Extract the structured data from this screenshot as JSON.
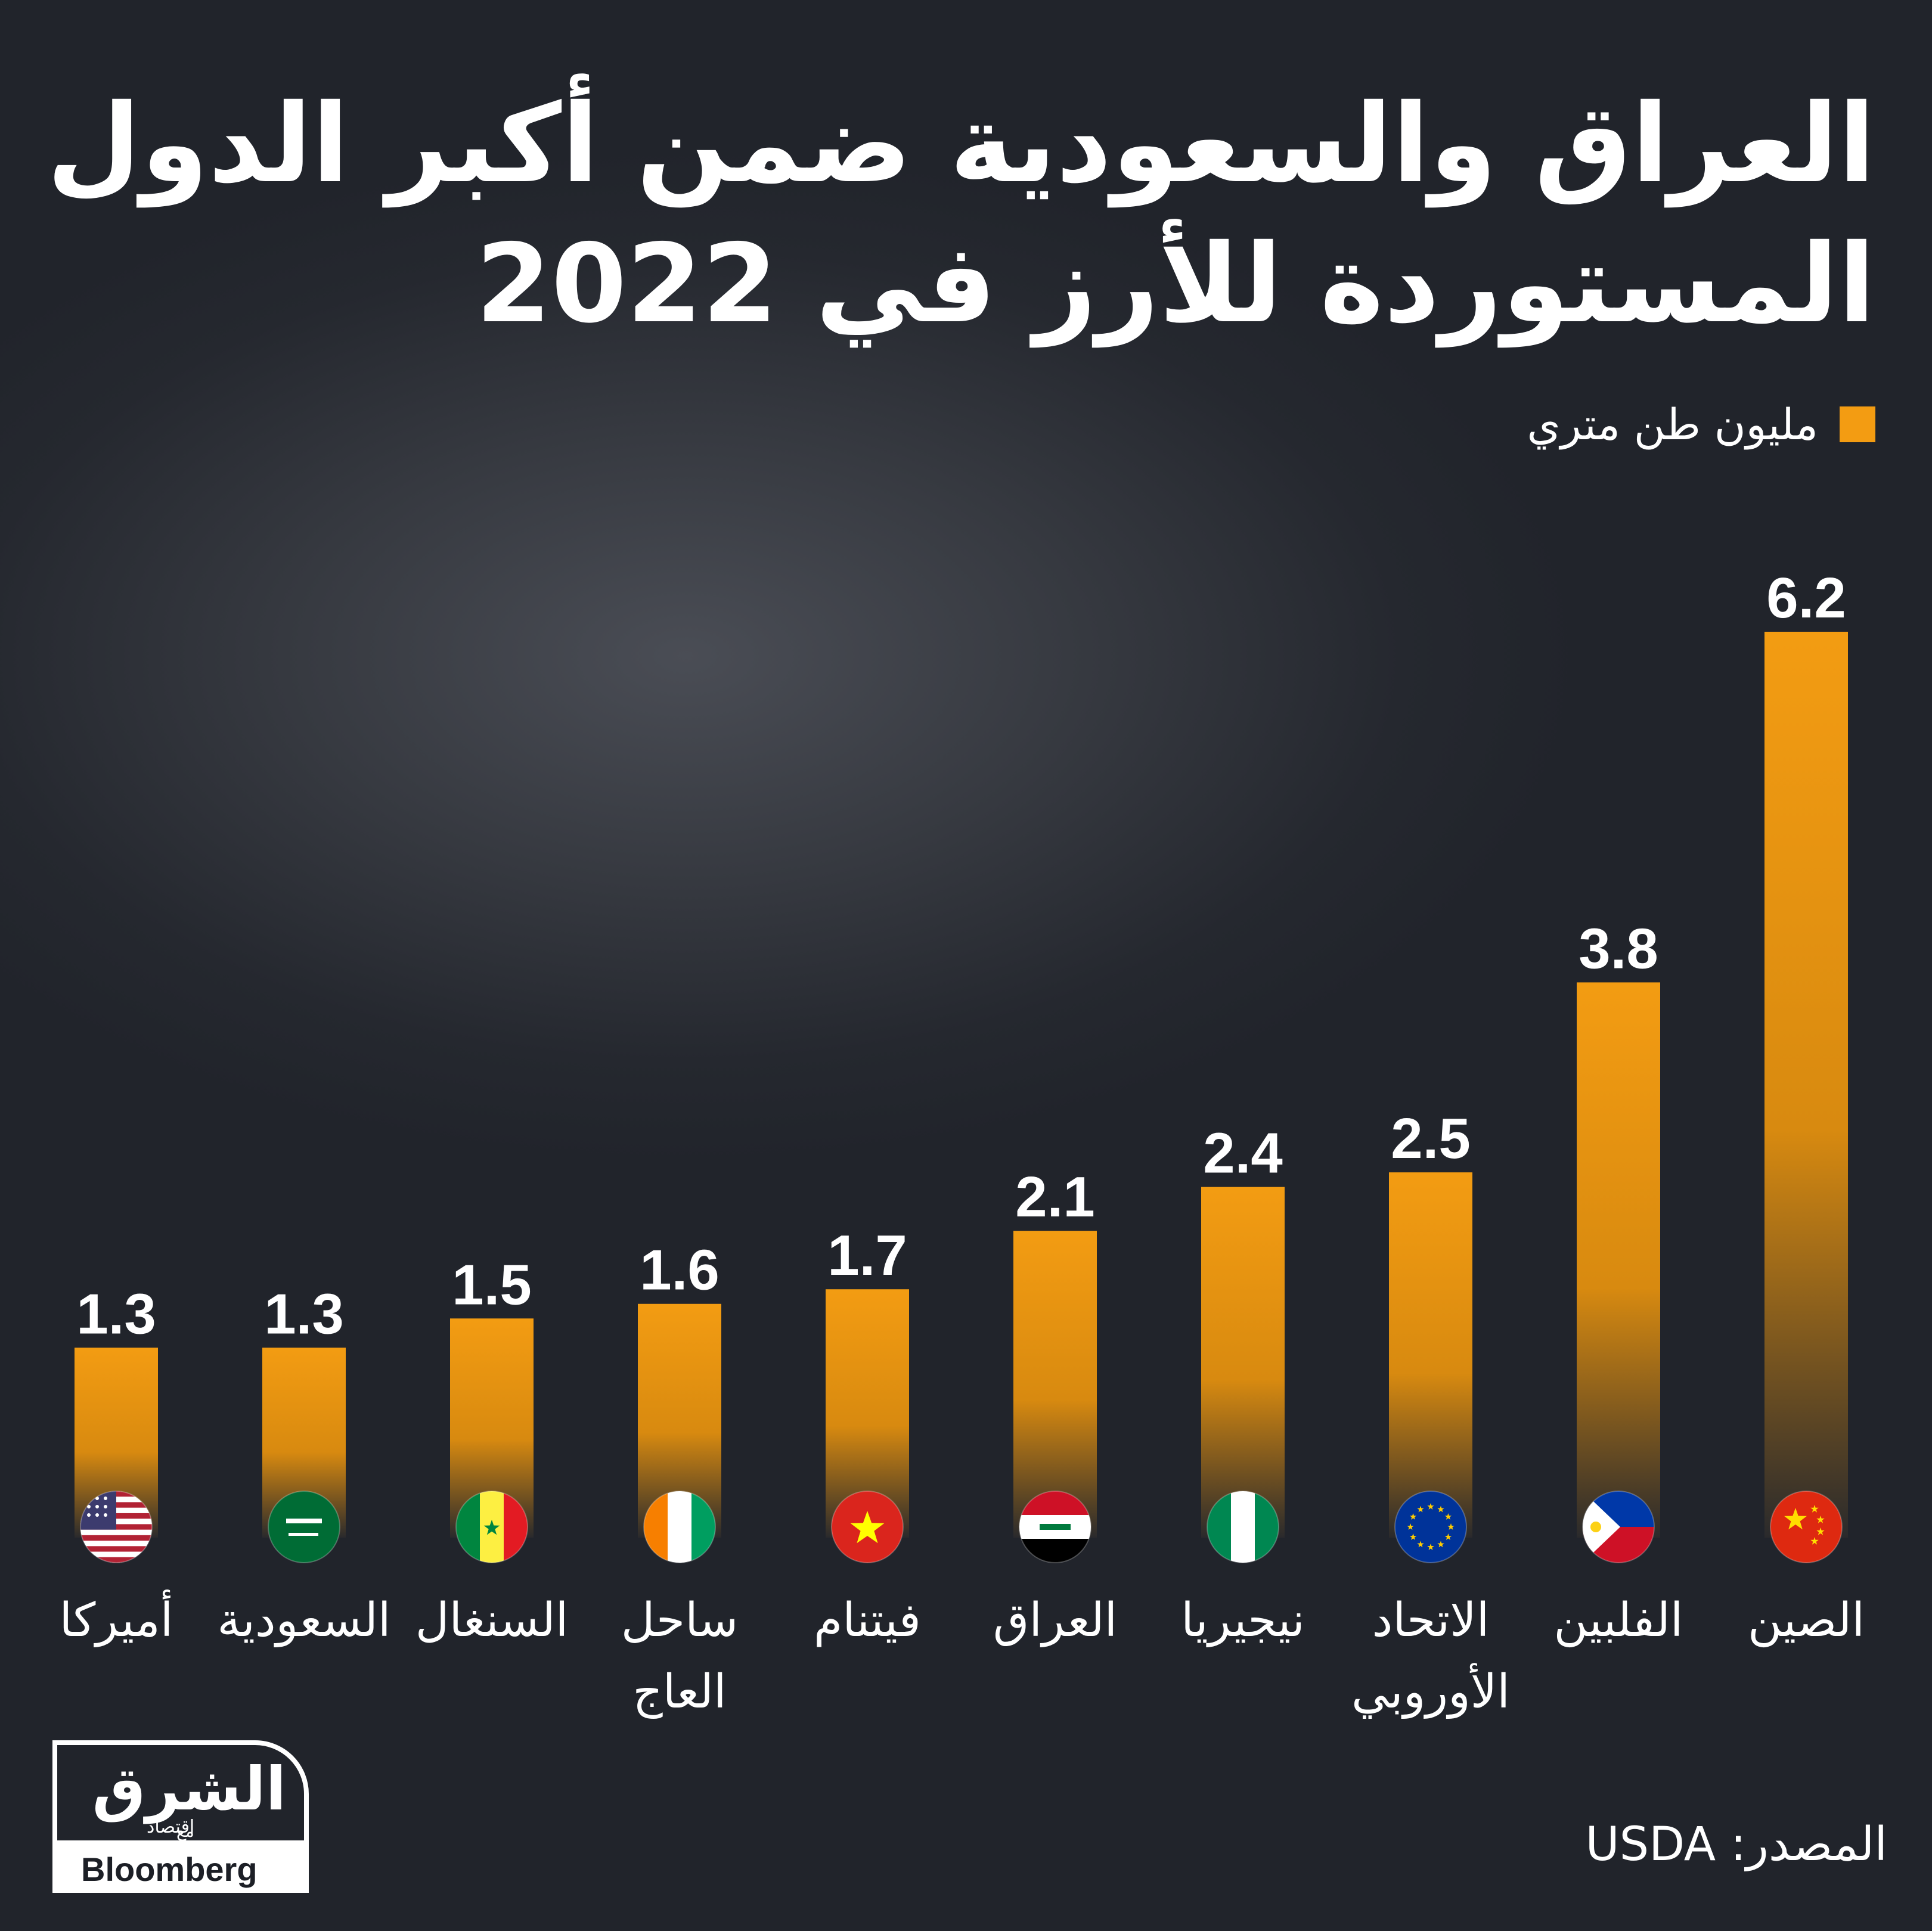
{
  "title_lines": [
    "العراق والسعودية ضمن أكبر الدول",
    "المستوردة للأرز في 2022"
  ],
  "legend": "مليون طن متري",
  "source": "المصدر: USDA",
  "logo": {
    "main": "الشرق",
    "sub": "اقتصاد",
    "with": "مع",
    "partner": "Bloomberg"
  },
  "colors": {
    "bar": "#f39c12",
    "background": "#22252c",
    "text": "#ffffff"
  },
  "chart_data": {
    "type": "bar",
    "title": "العراق والسعودية ضمن أكبر الدول المستوردة للأرز في 2022",
    "ylabel": "مليون طن متري",
    "ylim": [
      0,
      6.2
    ],
    "categories": [
      [
        "الصين"
      ],
      [
        "الفلبين"
      ],
      [
        "الاتحاد",
        "الأوروبي"
      ],
      [
        "نيجيريا"
      ],
      [
        "العراق"
      ],
      [
        "فيتنام"
      ],
      [
        "ساحل",
        "العاج"
      ],
      [
        "السنغال"
      ],
      [
        "السعودية"
      ],
      [
        "أميركا"
      ]
    ],
    "values": [
      6.2,
      3.8,
      2.5,
      2.4,
      2.1,
      1.7,
      1.6,
      1.5,
      1.3,
      1.3
    ],
    "value_labels": [
      "6.2",
      "3.8",
      "2.5",
      "2.4",
      "2.1",
      "1.7",
      "1.6",
      "1.5",
      "1.3",
      "1.3"
    ],
    "flags": [
      "china-flag-icon",
      "philippines-flag-icon",
      "eu-flag-icon",
      "nigeria-flag-icon",
      "iraq-flag-icon",
      "vietnam-flag-icon",
      "ivory-coast-flag-icon",
      "senegal-flag-icon",
      "saudi-flag-icon",
      "usa-flag-icon"
    ],
    "grid": false,
    "legend_position": "top-right"
  }
}
